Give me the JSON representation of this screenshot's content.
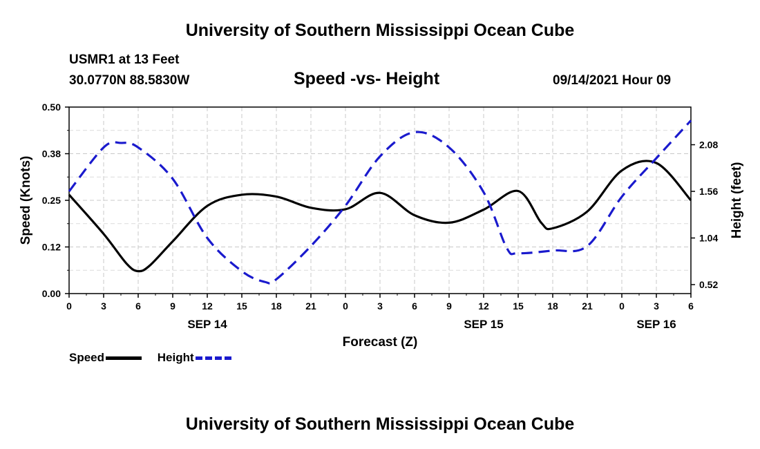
{
  "header": {
    "title": "University of Southern Mississippi Ocean Cube",
    "station": "USMR1 at 13 Feet",
    "coords": "30.0770N  88.5830W",
    "chart_title": "Speed -vs- Height",
    "datetime": "09/14/2021 Hour 09"
  },
  "footer": {
    "title": "University of Southern Mississippi Ocean Cube"
  },
  "legend": {
    "speed_label": "Speed",
    "height_label": "Height"
  },
  "colors": {
    "speed": "#000000",
    "height": "#1a1acd",
    "grid": "#c8c8c8"
  },
  "chart_data": {
    "type": "line",
    "title": "Speed -vs- Height",
    "xlabel": "Forecast (Z)",
    "ylabel_left": "Speed (Knots)",
    "ylabel_right": "Height (feet)",
    "xlim": [
      0,
      54
    ],
    "x_ticks": [
      0,
      3,
      6,
      9,
      12,
      15,
      18,
      21,
      24,
      27,
      30,
      33,
      36,
      39,
      42,
      45,
      48,
      51,
      54
    ],
    "x_tick_labels": [
      "0",
      "3",
      "6",
      "9",
      "12",
      "15",
      "18",
      "21",
      "0",
      "3",
      "6",
      "9",
      "12",
      "15",
      "18",
      "21",
      "0",
      "3",
      "6"
    ],
    "date_labels": [
      {
        "x": 12,
        "label": "SEP 14"
      },
      {
        "x": 36,
        "label": "SEP 15"
      },
      {
        "x": 51,
        "label": "SEP 16"
      }
    ],
    "ylim_left": [
      0,
      0.5
    ],
    "y_ticks_left": [
      0,
      0.125,
      0.25,
      0.375,
      0.5
    ],
    "y_tick_labels_left": [
      "0.00",
      "0.12",
      "0.25",
      "0.38",
      "0.50"
    ],
    "ylim_right": [
      0.42,
      2.5
    ],
    "y_ticks_right": [
      0.52,
      1.04,
      1.56,
      2.08
    ],
    "y_tick_labels_right": [
      "0.52",
      "1.04",
      "1.56",
      "2.08"
    ],
    "grid": true,
    "series": [
      {
        "name": "Speed",
        "axis": "left",
        "style": "solid",
        "x": [
          0,
          3,
          5,
          6,
          7,
          9,
          12,
          15,
          18,
          21,
          24,
          27,
          30,
          33,
          36,
          39,
          41,
          42,
          45,
          48,
          51,
          54
        ],
        "values": [
          0.265,
          0.16,
          0.08,
          0.06,
          0.075,
          0.14,
          0.235,
          0.265,
          0.26,
          0.23,
          0.226,
          0.27,
          0.21,
          0.19,
          0.225,
          0.275,
          0.19,
          0.175,
          0.22,
          0.33,
          0.35,
          0.25
        ]
      },
      {
        "name": "Height",
        "axis": "right",
        "style": "dashed",
        "x": [
          0,
          3,
          4.5,
          6,
          9,
          12,
          15,
          17,
          18,
          21,
          24,
          27,
          30,
          33,
          36,
          38,
          39,
          42,
          45,
          48,
          51,
          54
        ],
        "values": [
          1.56,
          2.05,
          2.1,
          2.05,
          1.7,
          1.04,
          0.67,
          0.55,
          0.58,
          0.95,
          1.4,
          1.95,
          2.22,
          2.05,
          1.55,
          0.93,
          0.87,
          0.9,
          0.95,
          1.5,
          1.93,
          2.35
        ]
      }
    ]
  }
}
